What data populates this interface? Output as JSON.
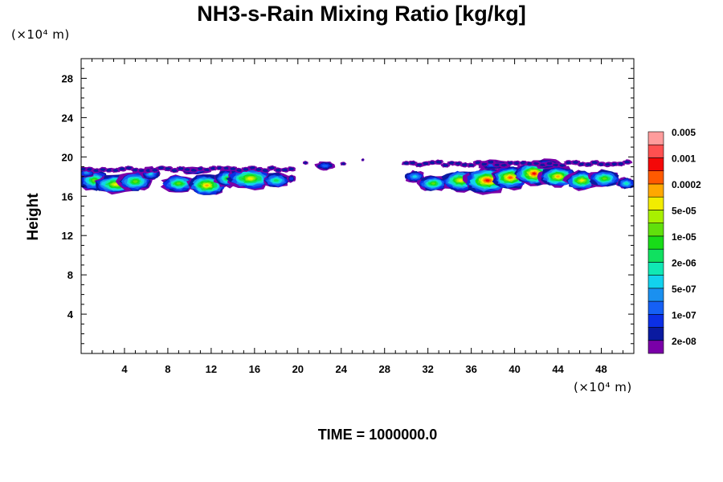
{
  "chart_data": {
    "type": "heatmap",
    "title": "NH3-s-Rain Mixing Ratio [kg/kg]",
    "xlabel": "",
    "ylabel": "Height",
    "x_unit": "(×10⁴ m)",
    "y_unit": "(×10⁴ m)",
    "xlim": [
      0,
      51
    ],
    "ylim": [
      0,
      30
    ],
    "x_ticks": [
      4,
      8,
      12,
      16,
      20,
      24,
      28,
      32,
      36,
      40,
      44,
      48
    ],
    "y_ticks": [
      4,
      8,
      12,
      16,
      20,
      24,
      28
    ],
    "colorbar": {
      "colors": [
        "#7a00a8",
        "#0a1aa0",
        "#0b2fe6",
        "#1560f5",
        "#1a90f0",
        "#12d2ee",
        "#10e8b4",
        "#10e060",
        "#18dc18",
        "#60e00c",
        "#a8f000",
        "#f2ec00",
        "#ffa800",
        "#ff5a00",
        "#f40808",
        "#ff5050",
        "#ff9c9c"
      ],
      "labels": [
        "2e-08",
        "1e-07",
        "5e-07",
        "2e-06",
        "1e-05",
        "5e-05",
        "0.0002",
        "0.001",
        "0.005"
      ]
    },
    "regions": [
      {
        "x": [
          0,
          19.8
        ],
        "y": [
          16.2,
          19.2
        ],
        "peak_level": 12,
        "description": "layer"
      },
      {
        "x": [
          20.5,
          24.5
        ],
        "y": [
          18.8,
          19.6
        ],
        "peak_level": 3
      },
      {
        "x": [
          29.5,
          51
        ],
        "y": [
          16.2,
          20
        ],
        "peak_level": 14
      }
    ],
    "footer": "TIME = 1000000.0"
  }
}
